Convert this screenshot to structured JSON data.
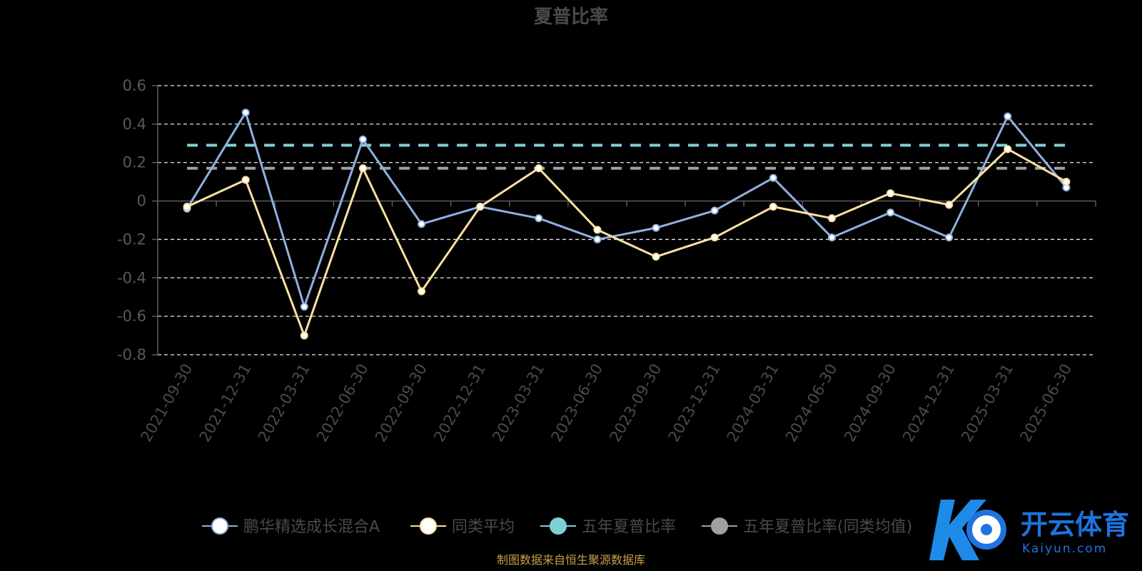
{
  "chart_data": {
    "type": "line",
    "title": "夏普比率",
    "categories": [
      "2021-09-30",
      "2021-12-31",
      "2022-03-31",
      "2022-06-30",
      "2022-09-30",
      "2022-12-31",
      "2023-03-31",
      "2023-06-30",
      "2023-09-30",
      "2023-12-31",
      "2024-03-31",
      "2024-06-30",
      "2024-09-30",
      "2024-12-31",
      "2025-03-31",
      "2025-06-30"
    ],
    "yticks": [
      "0.6",
      "0.4",
      "0.2",
      "0",
      "-0.2",
      "-0.4",
      "-0.6",
      "-0.8"
    ],
    "ylim": [
      -0.8,
      0.6
    ],
    "grid": true,
    "series": [
      {
        "name": "鹏华精选成长混合A",
        "color": "#8fb0e0",
        "values": [
          -0.04,
          0.46,
          -0.55,
          0.32,
          -0.12,
          -0.03,
          -0.09,
          -0.2,
          -0.14,
          -0.05,
          0.12,
          -0.19,
          -0.06,
          -0.19,
          0.44,
          0.07
        ]
      },
      {
        "name": "同类平均",
        "color": "#ffe0a0",
        "values": [
          -0.03,
          0.11,
          -0.7,
          0.17,
          -0.47,
          -0.03,
          0.17,
          -0.15,
          -0.29,
          -0.19,
          -0.03,
          -0.09,
          0.04,
          -0.02,
          0.27,
          0.1
        ]
      }
    ],
    "reference_lines": [
      {
        "name": "五年夏普比率",
        "value": 0.29,
        "color": "#7fd0d4"
      },
      {
        "name": "五年夏普比率(同类均值)",
        "value": 0.17,
        "color": "#a0a0a0"
      }
    ],
    "legend_position": "bottom"
  },
  "legend": [
    {
      "label": "鹏华精选成长混合A",
      "color": "#8fb0e0",
      "marker": "#ffffff"
    },
    {
      "label": "同类平均",
      "color": "#ffe0a0",
      "marker": "#ffffff"
    },
    {
      "label": "五年夏普比率",
      "color": "#7fd0d4",
      "marker": "#7fd0d4"
    },
    {
      "label": "五年夏普比率(同类均值)",
      "color": "#a0a0a0",
      "marker": "#a0a0a0"
    }
  ],
  "source_note": "制图数据来自恒生聚源数据库",
  "watermark": {
    "text": "开云体育",
    "sub": "Kaiyun.com"
  }
}
